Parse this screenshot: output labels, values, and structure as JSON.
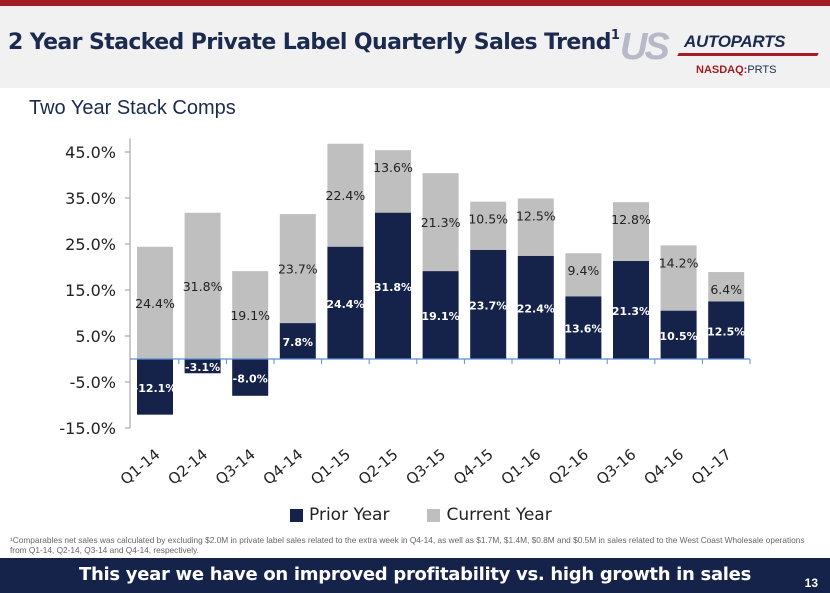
{
  "header": {
    "title": "2 Year Stacked Private Label Quarterly Sales Trend",
    "title_superscript": "1",
    "logo_us": "US",
    "logo_autoparts": "AUTOPARTS",
    "ticker_label": "NASDAQ:",
    "ticker_symbol": "PRTS"
  },
  "subtitle": "Two Year Stack Comps",
  "colors": {
    "prior_year": "#15224a",
    "current_year": "#bfbfbf",
    "brand_red": "#a31c24",
    "banner": "#15224a"
  },
  "chart_data": {
    "type": "bar",
    "stacked": true,
    "title": "Two Year Stack Comps",
    "xlabel": "",
    "ylabel": "",
    "categories": [
      "Q1-14",
      "Q2-14",
      "Q3-14",
      "Q4-14",
      "Q1-15",
      "Q2-15",
      "Q3-15",
      "Q4-15",
      "Q1-16",
      "Q2-16",
      "Q3-16",
      "Q4-16",
      "Q1-17"
    ],
    "series": [
      {
        "name": "Prior Year",
        "values": [
          -12.1,
          -3.1,
          -8.0,
          7.8,
          24.4,
          31.8,
          19.1,
          23.7,
          22.4,
          13.6,
          21.3,
          10.5,
          12.5
        ],
        "labels": [
          "-12.1%",
          "-3.1%",
          "-8.0%",
          "7.8%",
          "24.4%",
          "31.8%",
          "19.1%",
          "23.7%",
          "22.4%",
          "13.6%",
          "21.3%",
          "10.5%",
          "12.5%"
        ]
      },
      {
        "name": "Current Year",
        "values": [
          24.4,
          31.8,
          19.1,
          23.7,
          22.4,
          13.6,
          21.3,
          10.5,
          12.5,
          9.4,
          12.8,
          14.2,
          6.4
        ],
        "labels": [
          "24.4%",
          "31.8%",
          "19.1%",
          "23.7%",
          "22.4%",
          "13.6%",
          "21.3%",
          "10.5%",
          "12.5%",
          "9.4%",
          "12.8%",
          "14.2%",
          "6.4%"
        ]
      }
    ],
    "yticks": [
      45,
      35,
      25,
      15,
      5,
      -5,
      -15
    ],
    "ytick_labels": [
      "45.0%",
      "35.0%",
      "25.0%",
      "15.0%",
      "5.0%",
      "-5.0%",
      "-15.0%"
    ],
    "ylim": [
      -15,
      48
    ],
    "grid": false,
    "legend": [
      "Prior Year",
      "Current Year"
    ],
    "legend_position": "bottom"
  },
  "footnote": "¹Comparables net sales was calculated by excluding $2.0M in private label sales related to the extra week in Q4-14, as well as $1.7M, $1.4M, $0.8M and $0.5M in sales related to the West Coast Wholesale operations from  Q1-14, Q2-14, Q3-14 and Q4-14, respectively.",
  "banner": {
    "text": "This year we have on improved profitability vs. high growth in sales",
    "page_number": "13"
  }
}
